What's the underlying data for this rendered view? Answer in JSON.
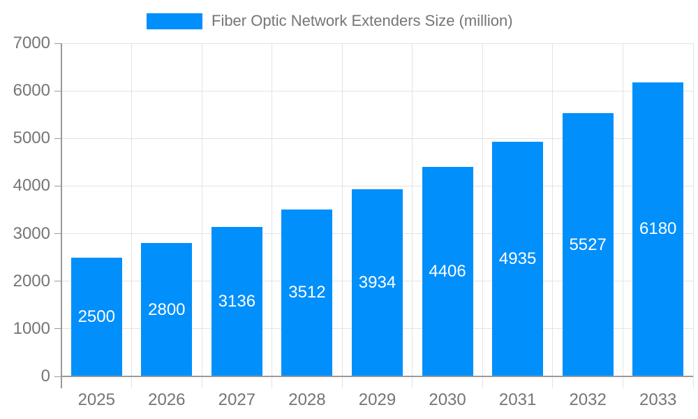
{
  "chart": {
    "legend_label": "Fiber Optic Network Extenders Size (million)",
    "colors": {
      "bar": "#008FFB",
      "bar_label_text": "#ffffff",
      "axis_text": "#757575",
      "grid": "#e3e3e3",
      "axis_line": "#9a9a9a",
      "background": "#ffffff"
    }
  },
  "chart_data": {
    "type": "bar",
    "title": "Fiber Optic Network Extenders Size (million)",
    "categories": [
      "2025",
      "2026",
      "2027",
      "2028",
      "2029",
      "2030",
      "2031",
      "2032",
      "2033"
    ],
    "series": [
      {
        "name": "Fiber Optic Network Extenders Size (million)",
        "values": [
          2500,
          2800,
          3136,
          3512,
          3934,
          4406,
          4935,
          5527,
          6180
        ]
      }
    ],
    "xlabel": "",
    "ylabel": "",
    "ylim": [
      0,
      7000
    ],
    "yticks": [
      0,
      1000,
      2000,
      3000,
      4000,
      5000,
      6000,
      7000
    ],
    "grid": true,
    "legend_position": "top",
    "bar_labels": "inside-center"
  }
}
